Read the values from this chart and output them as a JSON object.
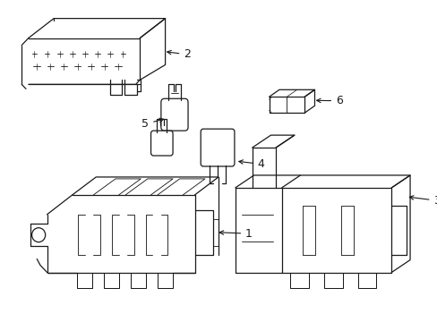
{
  "background_color": "#ffffff",
  "line_color": "#1a1a1a",
  "line_width": 0.9,
  "label_fontsize": 9,
  "figsize": [
    4.89,
    3.6
  ],
  "dpi": 100
}
